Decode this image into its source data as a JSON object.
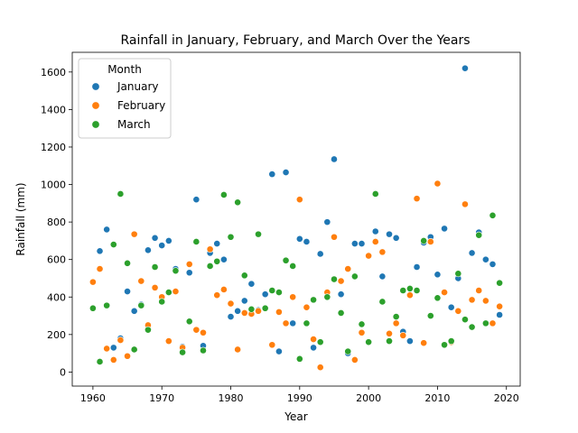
{
  "chart_data": {
    "type": "scatter",
    "title": "Rainfall in January, February, and March Over the Years",
    "xlabel": "Year",
    "ylabel": "Rainfall (mm)",
    "xlim": [
      1957,
      2022
    ],
    "ylim": [
      -75,
      1705
    ],
    "xticks": [
      1960,
      1970,
      1980,
      1990,
      2000,
      2010,
      2020
    ],
    "yticks": [
      0,
      200,
      400,
      600,
      800,
      1000,
      1200,
      1400,
      1600
    ],
    "grid": false,
    "legend": {
      "title": "Month",
      "placement": "top-left"
    },
    "series": [
      {
        "name": "January",
        "color": "#1f77b4",
        "x": [
          1961,
          1962,
          1963,
          1964,
          1965,
          1966,
          1967,
          1968,
          1969,
          1970,
          1971,
          1972,
          1973,
          1974,
          1975,
          1976,
          1977,
          1978,
          1979,
          1980,
          1981,
          1982,
          1983,
          1984,
          1985,
          1986,
          1987,
          1988,
          1989,
          1990,
          1991,
          1992,
          1993,
          1994,
          1995,
          1996,
          1997,
          1998,
          1999,
          2000,
          2001,
          2002,
          2003,
          2004,
          2005,
          2006,
          2007,
          2008,
          2009,
          2010,
          2011,
          2012,
          2013,
          2014,
          2015,
          2016,
          2017,
          2018,
          2019
        ],
        "y": [
          645,
          760,
          130,
          180,
          430,
          325,
          360,
          650,
          715,
          675,
          700,
          550,
          135,
          530,
          920,
          140,
          635,
          685,
          600,
          295,
          325,
          380,
          470,
          330,
          415,
          1055,
          110,
          1065,
          260,
          710,
          695,
          130,
          630,
          800,
          1135,
          415,
          100,
          685,
          685,
          160,
          750,
          510,
          735,
          715,
          215,
          165,
          560,
          690,
          720,
          520,
          765,
          345,
          500,
          1620,
          635,
          745,
          600,
          575,
          305
        ]
      },
      {
        "name": "February",
        "color": "#ff7f0e",
        "x": [
          1960,
          1961,
          1962,
          1963,
          1964,
          1965,
          1966,
          1967,
          1968,
          1969,
          1970,
          1971,
          1972,
          1973,
          1974,
          1975,
          1976,
          1977,
          1978,
          1979,
          1980,
          1981,
          1982,
          1983,
          1984,
          1986,
          1987,
          1988,
          1989,
          1990,
          1991,
          1992,
          1993,
          1994,
          1995,
          1996,
          1997,
          1998,
          1999,
          2000,
          2001,
          2002,
          2003,
          2004,
          2005,
          2006,
          2007,
          2008,
          2009,
          2010,
          2011,
          2012,
          2013,
          2014,
          2015,
          2016,
          2017,
          2018,
          2019
        ],
        "y": [
          480,
          550,
          125,
          65,
          170,
          85,
          735,
          485,
          250,
          450,
          400,
          165,
          430,
          130,
          575,
          225,
          210,
          655,
          410,
          440,
          365,
          120,
          315,
          310,
          325,
          145,
          320,
          260,
          400,
          920,
          345,
          175,
          25,
          425,
          720,
          485,
          550,
          65,
          210,
          620,
          695,
          640,
          205,
          260,
          195,
          410,
          925,
          155,
          695,
          1005,
          425,
          160,
          325,
          895,
          385,
          435,
          380,
          260,
          350
        ]
      },
      {
        "name": "March",
        "color": "#2ca02c",
        "x": [
          1960,
          1961,
          1962,
          1963,
          1964,
          1965,
          1966,
          1967,
          1968,
          1969,
          1970,
          1971,
          1972,
          1973,
          1974,
          1975,
          1976,
          1977,
          1978,
          1979,
          1980,
          1981,
          1982,
          1983,
          1984,
          1985,
          1986,
          1987,
          1988,
          1989,
          1990,
          1991,
          1992,
          1993,
          1994,
          1995,
          1996,
          1997,
          1998,
          1999,
          2000,
          2001,
          2002,
          2003,
          2004,
          2005,
          2006,
          2007,
          2008,
          2009,
          2010,
          2011,
          2012,
          2013,
          2014,
          2015,
          2016,
          2017,
          2018,
          2019
        ],
        "y": [
          340,
          55,
          355,
          680,
          950,
          580,
          120,
          355,
          225,
          560,
          375,
          425,
          540,
          105,
          270,
          695,
          115,
          565,
          590,
          945,
          720,
          905,
          515,
          335,
          735,
          340,
          435,
          425,
          595,
          565,
          70,
          260,
          385,
          160,
          400,
          495,
          315,
          110,
          510,
          255,
          160,
          950,
          375,
          165,
          295,
          435,
          445,
          435,
          700,
          300,
          395,
          145,
          165,
          525,
          280,
          240,
          730,
          260,
          835,
          475
        ]
      }
    ]
  }
}
